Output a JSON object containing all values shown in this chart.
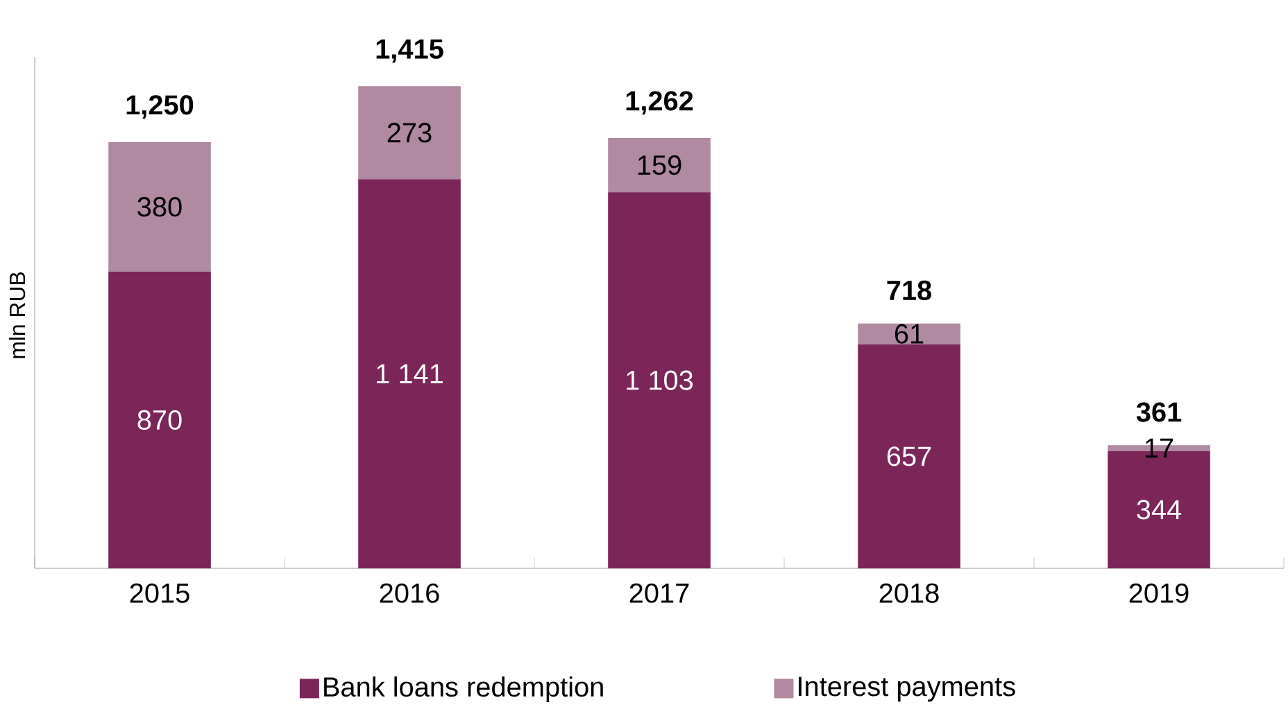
{
  "chart_data": {
    "type": "bar",
    "stacked": true,
    "ylabel": "mln RUB",
    "categories": [
      "2015",
      "2016",
      "2017",
      "2018",
      "2019"
    ],
    "series": [
      {
        "name": "Bank loans redemption",
        "color": "#7b2559",
        "values": [
          870,
          1141,
          1103,
          657,
          344
        ],
        "value_labels": [
          "870",
          "1 141",
          "1 103",
          "657",
          "344"
        ]
      },
      {
        "name": "Interest payments",
        "color": "#b08aa0",
        "values": [
          380,
          273,
          159,
          61,
          17
        ],
        "value_labels": [
          "380",
          "273",
          "159",
          "61",
          "17"
        ]
      }
    ],
    "totals": [
      "1,250",
      "1,415",
      "1,262",
      "718",
      "361"
    ],
    "ylim": [
      0,
      1500
    ],
    "tick_labels": "x",
    "legend": "bottom"
  }
}
